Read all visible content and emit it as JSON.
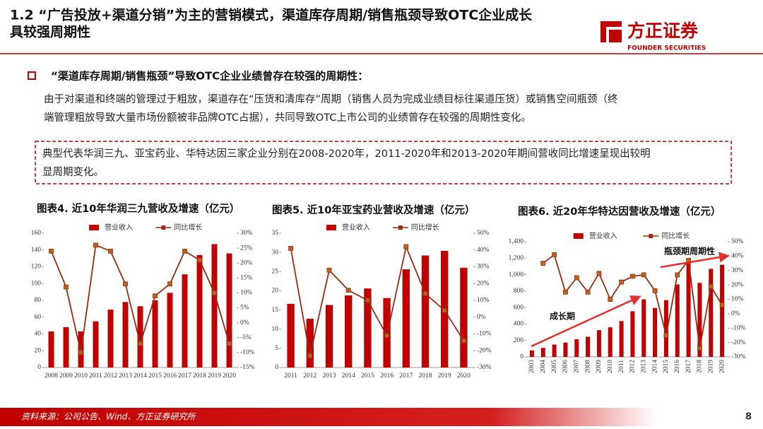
{
  "header": {
    "title": [
      "1.2 “广告投放+渠道分销”为主的营销模式，渠道库存周期/销售瓶颈导致OTC企业成长",
      "具较强周期性"
    ]
  },
  "logo": {
    "name": "方正证券",
    "subtitle": "FOUNDER SECURITIES"
  },
  "bullet": "“渠道库存周期/销售瓶颈”导致OTC企业业绩曾存在较强的周期性：",
  "paragraph": [
    "由于对渠道和终端的管理过于粗放，渠道存在“压货和清库存”周期（销售人员为完成业绩目标往渠道压货）或销售空间瓶颈（终",
    "端管理粗放导致大量市场份额被非品牌OTC占据），共同导致OTC上市公司的业绩曾存在较强的周期性变化。"
  ],
  "box_text": [
    "典型代表华润三九、亚宝药业、华特达因三家企业分别在2008-2020年，2011-2020年和2013-2020年期间营收同比增速呈现出较明",
    "显周期变化。"
  ],
  "chart_data": [
    {
      "type": "bar_line",
      "title": "图表4. 近10年华润三九营收及增速（亿元）",
      "categories": [
        "2008",
        "2009",
        "2010",
        "2011",
        "2012",
        "2013",
        "2014",
        "2015",
        "2016",
        "2017",
        "2018",
        "2019",
        "2020"
      ],
      "series": [
        {
          "name": "营业收入",
          "color": "#c00000",
          "values": [
            43,
            48,
            43,
            55,
            69,
            78,
            73,
            80,
            89,
            111,
            134,
            147,
            136
          ]
        },
        {
          "name": "同比增长",
          "color": "#9c2a10",
          "axis": "y2",
          "values": [
            24,
            12,
            -10,
            26,
            24,
            13,
            -7,
            9,
            13,
            24,
            21,
            10,
            -7
          ]
        }
      ],
      "ylim": [
        0,
        160
      ],
      "yticks": [
        0,
        20,
        40,
        60,
        80,
        100,
        120,
        140,
        160
      ],
      "y2lim": [
        -15,
        30
      ],
      "y2ticks": [
        {
          "value": -15,
          "label": "-15%"
        },
        {
          "value": -10,
          "label": "-10%"
        },
        {
          "value": -5,
          "label": "-5%"
        },
        {
          "value": 0,
          "label": "0%"
        },
        {
          "value": 5,
          "label": "5%"
        },
        {
          "value": 10,
          "label": "10%"
        },
        {
          "value": 15,
          "label": "15%"
        },
        {
          "value": 20,
          "label": "20%"
        },
        {
          "value": 25,
          "label": "25%"
        },
        {
          "value": 30,
          "label": "30%"
        }
      ]
    },
    {
      "type": "bar_line",
      "title": "图表5. 近10年亚宝药业营收及增速（亿元）",
      "categories": [
        "2011",
        "2012",
        "2013",
        "2014",
        "2015",
        "2016",
        "2017",
        "2018",
        "2019",
        "2020"
      ],
      "series": [
        {
          "name": "营业收入",
          "color": "#c00000",
          "values": [
            16.6,
            12.7,
            16.3,
            18.8,
            20.6,
            18.1,
            25.6,
            29.2,
            30.4,
            26.0
          ]
        },
        {
          "name": "同比增长",
          "color": "#9c2a10",
          "axis": "y2",
          "values": [
            41,
            -23,
            28,
            16,
            10,
            -11,
            42,
            14,
            4,
            -14
          ]
        }
      ],
      "ylim": [
        0,
        35
      ],
      "yticks": [
        0,
        5,
        10,
        15,
        20,
        25,
        30,
        35
      ],
      "y2lim": [
        -30,
        50
      ],
      "y2ticks": [
        {
          "value": -30,
          "label": "-30%"
        },
        {
          "value": -20,
          "label": "-20%"
        },
        {
          "value": -10,
          "label": "-10%"
        },
        {
          "value": 0,
          "label": "0%"
        },
        {
          "value": 10,
          "label": "10%"
        },
        {
          "value": 20,
          "label": "20%"
        },
        {
          "value": 30,
          "label": "30%"
        },
        {
          "value": 40,
          "label": "40%"
        },
        {
          "value": 50,
          "label": "50%"
        }
      ]
    },
    {
      "type": "bar_line",
      "title": "图表6. 近20年华特达因营收及增速（亿元）",
      "categories": [
        "2003",
        "2004",
        "2005",
        "2006",
        "2007",
        "2008",
        "2009",
        "2010",
        "2011",
        "2012",
        "2013",
        "2014",
        "2015",
        "2016",
        "2017",
        "2018",
        "2019",
        "2020"
      ],
      "series": [
        {
          "name": "营业收入",
          "color": "#c00000",
          "values": [
            80,
            110,
            150,
            175,
            215,
            245,
            325,
            360,
            435,
            555,
            700,
            595,
            690,
            880,
            1150,
            900,
            1070,
            1120
          ]
        },
        {
          "name": "同比增长",
          "color": "#9c2a10",
          "axis": "y2",
          "values": [
            null,
            35,
            41,
            15,
            25,
            15,
            28,
            10,
            22,
            26,
            27,
            16,
            -15,
            27,
            37,
            -24,
            19,
            6
          ]
        }
      ],
      "ylim": [
        0,
        1400
      ],
      "yticks": [
        0,
        200,
        400,
        600,
        800,
        {
          "value": 1000,
          "label": "1,000"
        },
        {
          "value": 1200,
          "label": "1,200"
        },
        {
          "value": 1400,
          "label": "1,400"
        }
      ],
      "y2lim": [
        -30,
        50
      ],
      "y2ticks": [
        {
          "value": -30,
          "label": "-30%"
        },
        {
          "value": -20,
          "label": "-20%"
        },
        {
          "value": -10,
          "label": "-10%"
        },
        {
          "value": 0,
          "label": "0%"
        },
        {
          "value": 10,
          "label": "10%"
        },
        {
          "value": 20,
          "label": "20%"
        },
        {
          "value": 30,
          "label": "30%"
        },
        {
          "value": 40,
          "label": "40%"
        },
        {
          "value": 50,
          "label": "50%"
        }
      ],
      "annotations": [
        "成长期",
        "瓶颈期周期性"
      ]
    }
  ],
  "footer": {
    "source": "资料来源：公司公告、Wind、方正证券研究所",
    "page": "8"
  }
}
